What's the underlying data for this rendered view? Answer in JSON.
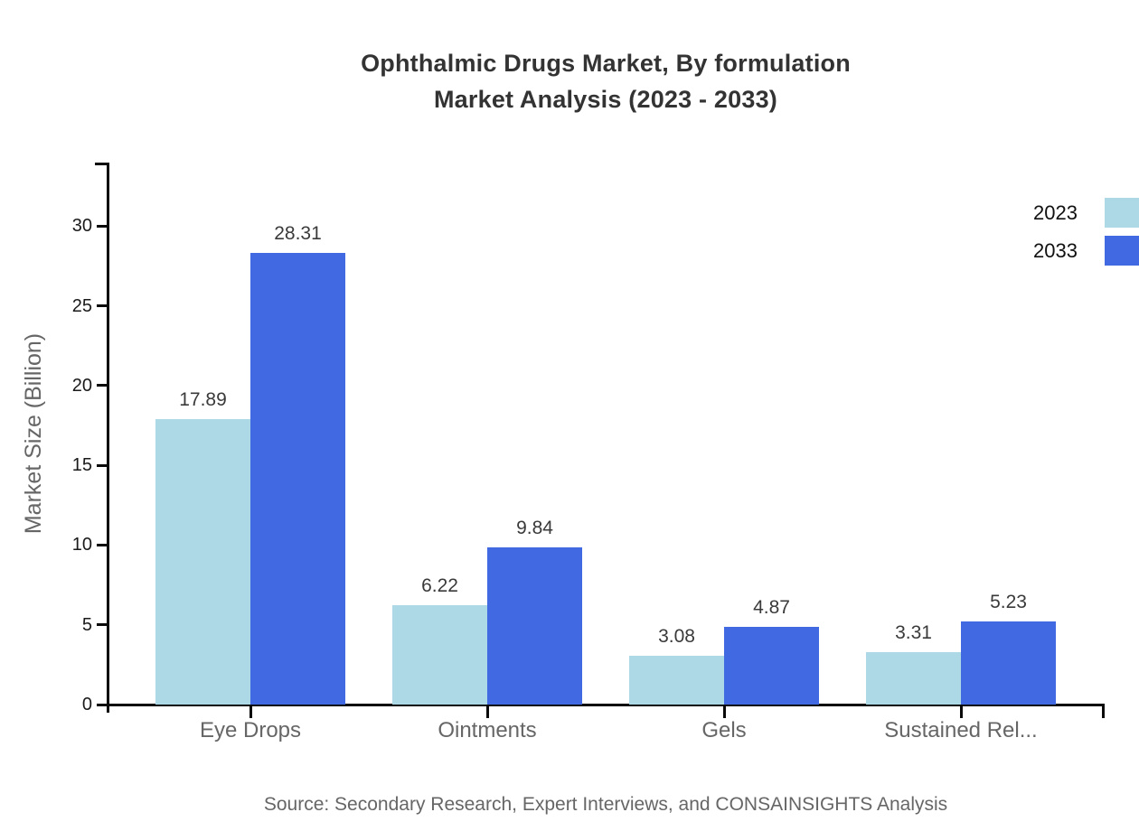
{
  "page": {
    "background": "#ffffff"
  },
  "chart_data": {
    "type": "bar",
    "title_line1": "Ophthalmic Drugs Market, By formulation",
    "title_line2": "Market Analysis (2023 - 2033)",
    "ylabel": "Market Size (Billion)",
    "xlabel": "",
    "categories": [
      "Eye Drops",
      "Ointments",
      "Gels",
      "Sustained Rel..."
    ],
    "series": [
      {
        "name": "2023",
        "color": "#ADD8E6",
        "values": [
          17.89,
          6.22,
          3.08,
          3.31
        ]
      },
      {
        "name": "2033",
        "color": "#4169E1",
        "values": [
          28.31,
          9.84,
          4.87,
          5.23
        ]
      }
    ],
    "y_ticks": [
      0,
      5,
      10,
      15,
      20,
      25,
      30
    ],
    "ylim": [
      0,
      34
    ],
    "grid": false,
    "value_labels": true,
    "legend_position": "top-right",
    "axis_color": "#0a0a0a"
  },
  "source_note": "Source: Secondary Research, Expert Interviews, and CONSAINSIGHTS Analysis"
}
